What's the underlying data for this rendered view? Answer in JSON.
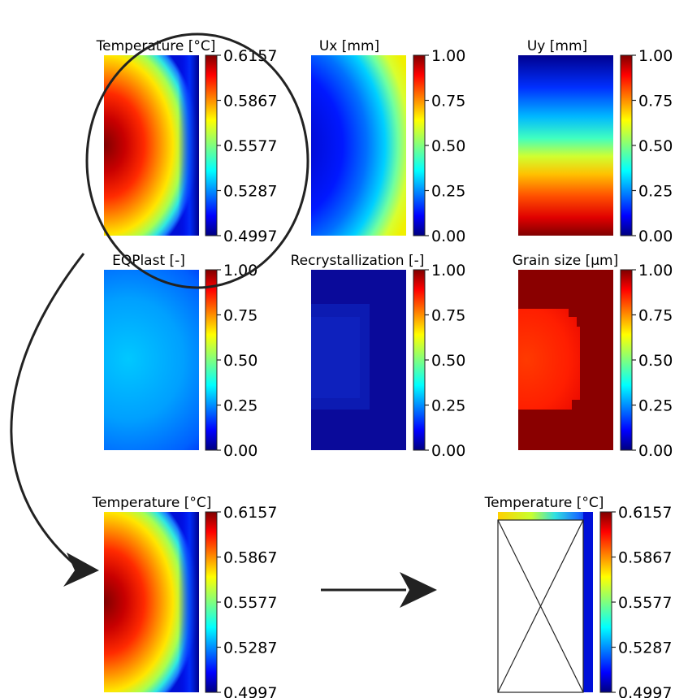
{
  "colors": {
    "jet_stops": [
      "#00007f",
      "#0000ff",
      "#007fff",
      "#00ffff",
      "#7fff7f",
      "#ffff00",
      "#ff7f00",
      "#ff0000",
      "#7f0000"
    ]
  },
  "panels": [
    {
      "id": "temp-top",
      "title": "Temperature [°C]",
      "ticks": [
        "0.6157",
        "0.5867",
        "0.5577",
        "0.5287",
        "0.4997"
      ],
      "field": "temperature"
    },
    {
      "id": "ux",
      "title": "Ux [mm]",
      "ticks": [
        "1.00",
        "0.75",
        "0.50",
        "0.25",
        "0.00"
      ],
      "field": "ux"
    },
    {
      "id": "uy",
      "title": "Uy [mm]",
      "ticks": [
        "1.00",
        "0.75",
        "0.50",
        "0.25",
        "0.00"
      ],
      "field": "uy"
    },
    {
      "id": "eqplast",
      "title": "EQPlast [-]",
      "ticks": [
        "1.00",
        "0.75",
        "0.50",
        "0.25",
        "0.00"
      ],
      "field": "eqplast"
    },
    {
      "id": "recryst",
      "title": "Recrystallization [-]",
      "ticks": [
        "1.00",
        "0.75",
        "0.50",
        "0.25",
        "0.00"
      ],
      "field": "recrystallization"
    },
    {
      "id": "grain",
      "title": "Grain size [μm]",
      "ticks": [
        "1.00",
        "0.75",
        "0.50",
        "0.25",
        "0.00"
      ],
      "field": "grain_size"
    },
    {
      "id": "temp-bottom",
      "title": "Temperature [°C]",
      "ticks": [
        "0.6157",
        "0.5867",
        "0.5577",
        "0.5287",
        "0.4997"
      ],
      "field": "temperature"
    },
    {
      "id": "temp-masked",
      "title": "Temperature [°C]",
      "ticks": [
        "0.6157",
        "0.5867",
        "0.5577",
        "0.5287",
        "0.4997"
      ],
      "field": "temperature_masked"
    }
  ]
}
